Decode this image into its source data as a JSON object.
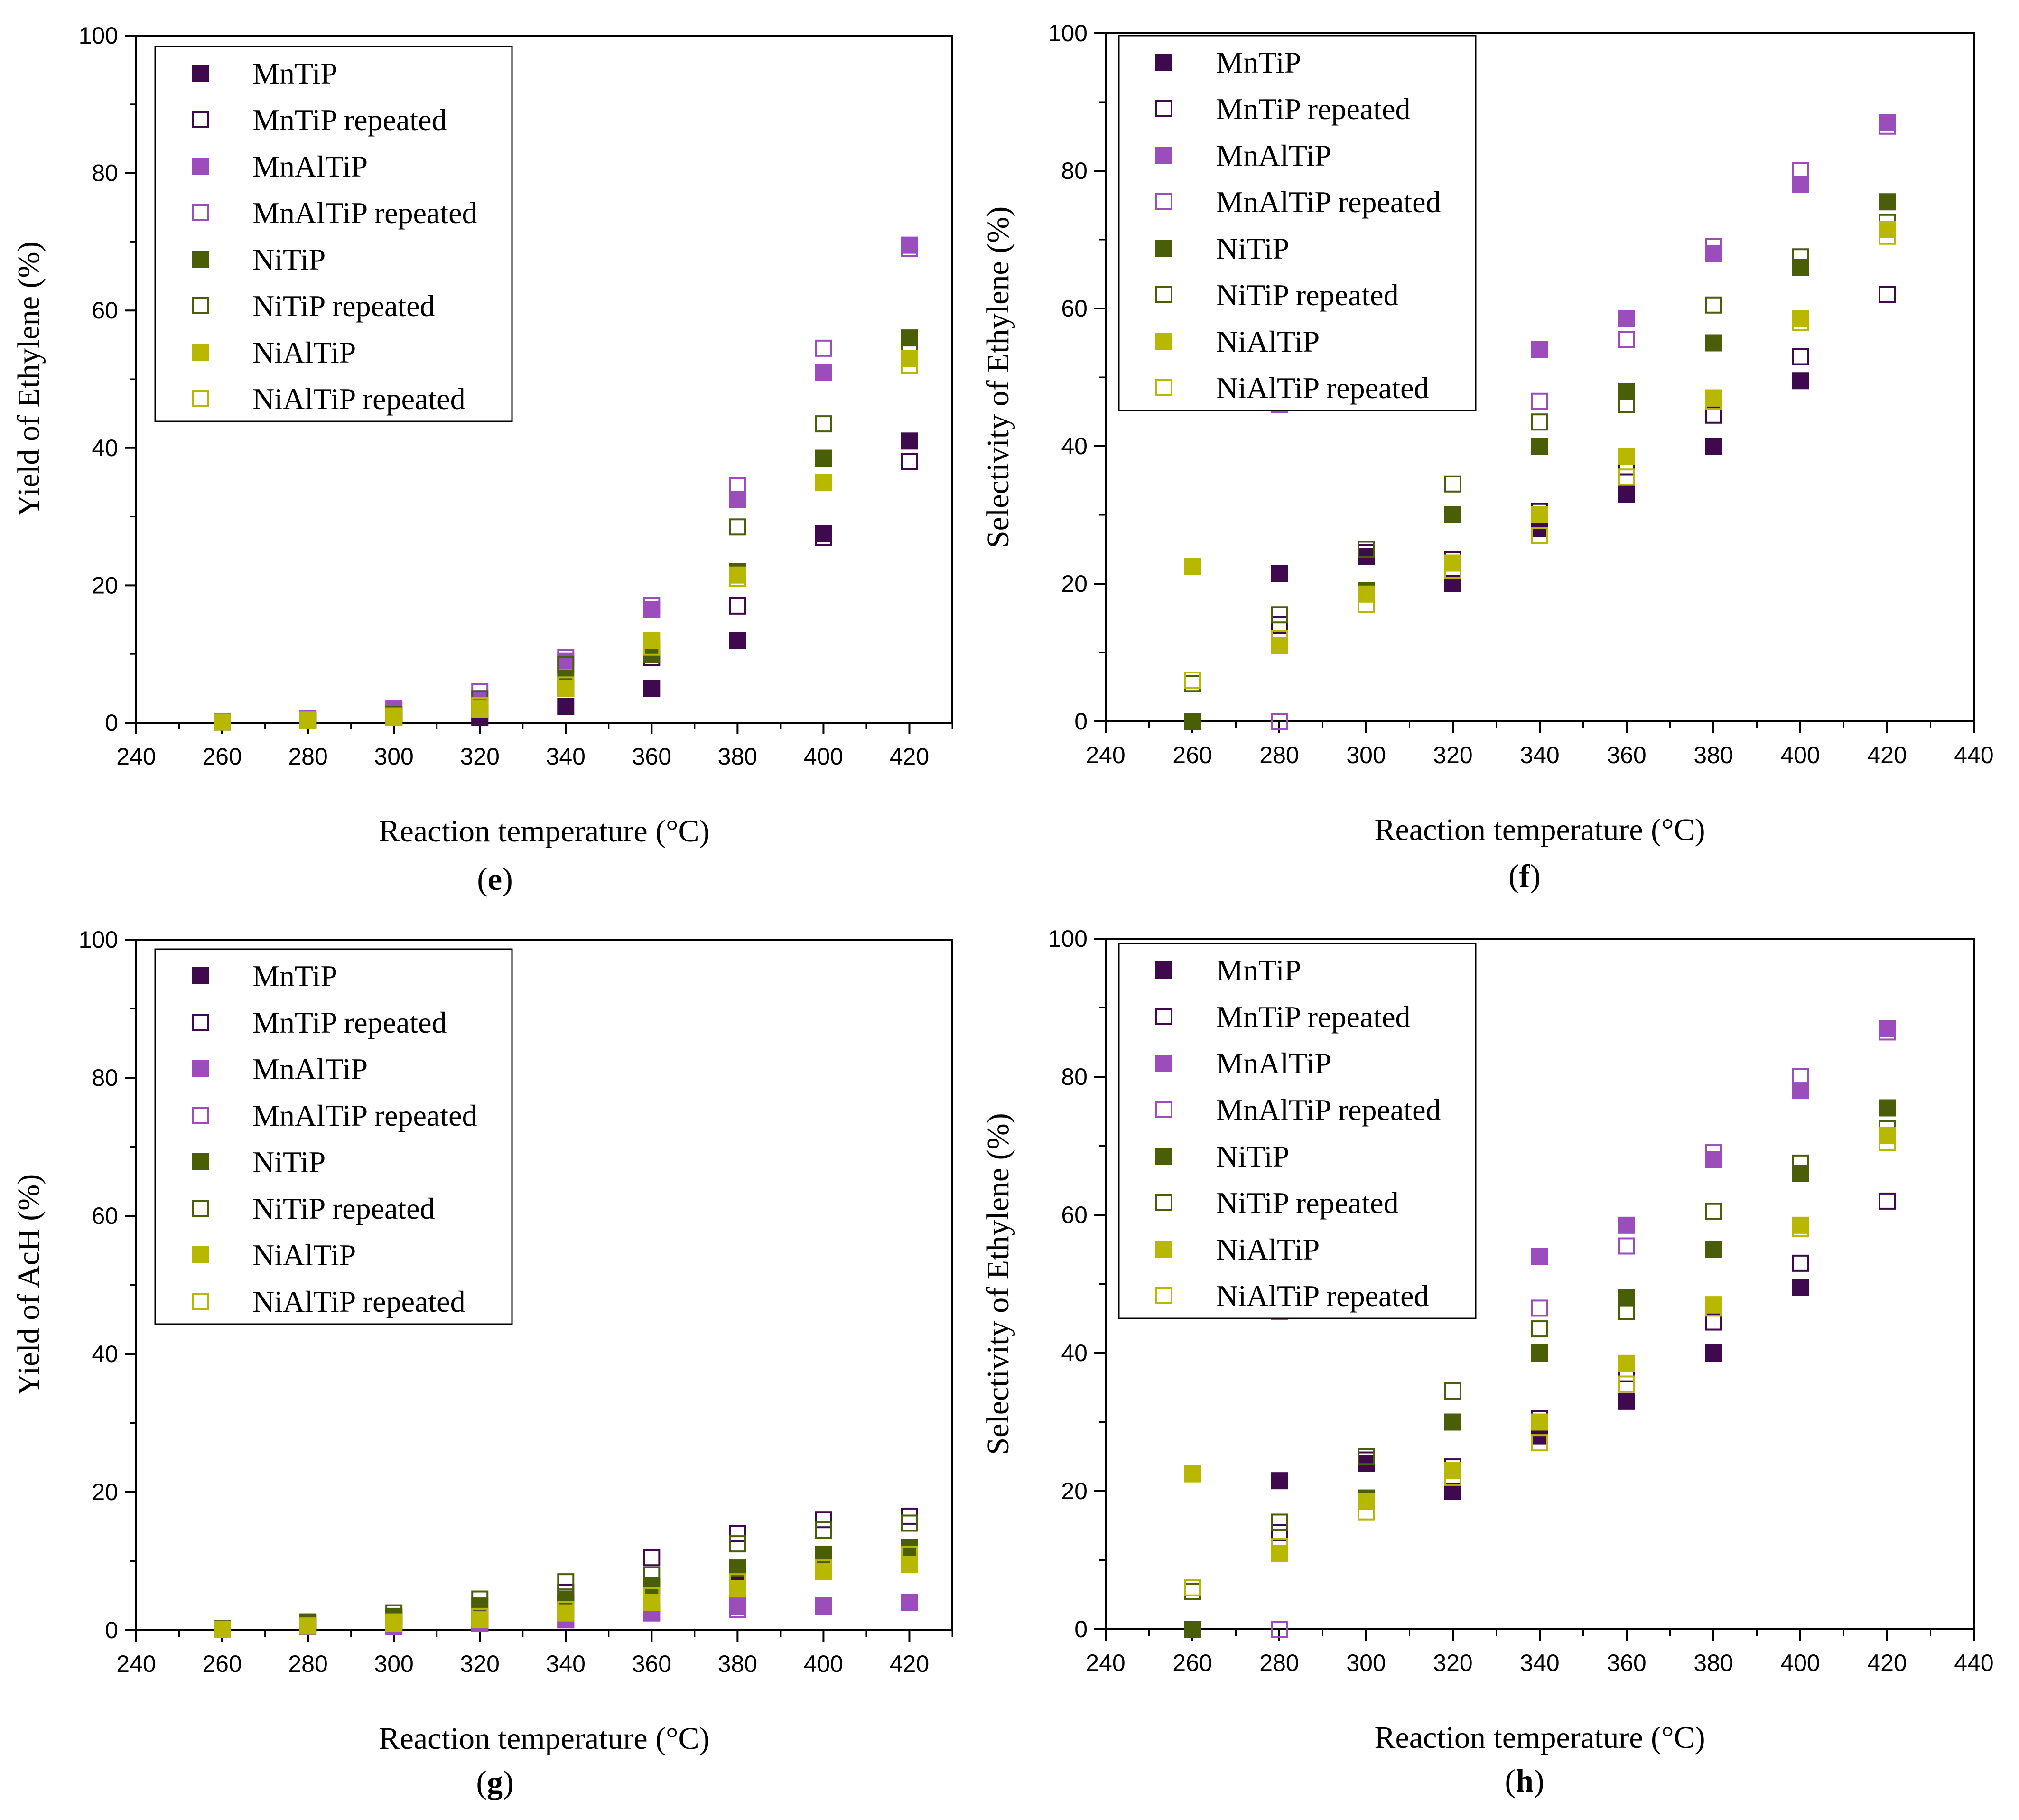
{
  "series_styles": [
    {
      "key": "MnTiP",
      "color": "#3f0a4d",
      "filled": true
    },
    {
      "key": "MnTiP_rep",
      "color": "#3f0a4d",
      "filled": false
    },
    {
      "key": "MnAlTiP",
      "color": "#9b4dbb",
      "filled": true
    },
    {
      "key": "MnAlTiP_rep",
      "color": "#9b4dbb",
      "filled": false
    },
    {
      "key": "NiTiP",
      "color": "#4a5e08",
      "filled": true
    },
    {
      "key": "NiTiP_rep",
      "color": "#4a5e08",
      "filled": false
    },
    {
      "key": "NiAlTiP",
      "color": "#b8b800",
      "filled": true
    },
    {
      "key": "NiAlTiP_rep",
      "color": "#b8b800",
      "filled": false
    }
  ],
  "chart_data": [
    {
      "type": "scatter",
      "panel": "e",
      "xlabel": "Reaction temperature (°C)",
      "ylabel": "Yield of Ethylene (%)",
      "xlim": [
        240,
        430
      ],
      "ylim": [
        0,
        100
      ],
      "xticks": [
        240,
        260,
        280,
        300,
        320,
        340,
        360,
        380,
        400,
        420
      ],
      "yticks": [
        0,
        20,
        40,
        60,
        80,
        100
      ],
      "legend_position": "top-left",
      "x": [
        260,
        280,
        300,
        320,
        340,
        360,
        380,
        400,
        420
      ],
      "series": [
        {
          "name": "MnTiP",
          "values": [
            0.1,
            0.3,
            0.8,
            0.8,
            2.4,
            5.0,
            12.0,
            27.5,
            41.0
          ]
        },
        {
          "name": "MnTiP repeated",
          "values": [
            0.1,
            0.4,
            1.2,
            1.5,
            5.0,
            9.5,
            17.0,
            27.0,
            38.0
          ]
        },
        {
          "name": "MnAlTiP",
          "values": [
            0.2,
            0.5,
            1.8,
            3.5,
            9.0,
            16.5,
            32.5,
            51.0,
            69.5
          ]
        },
        {
          "name": "MnAlTiP repeated",
          "values": [
            0.2,
            0.6,
            2.0,
            4.5,
            9.5,
            17.0,
            34.5,
            54.5,
            69.0
          ]
        },
        {
          "name": "NiTiP",
          "values": [
            0.1,
            0.3,
            1.0,
            2.0,
            6.5,
            10.0,
            22.0,
            38.5,
            56.0
          ]
        },
        {
          "name": "NiTiP repeated",
          "values": [
            0.1,
            0.4,
            1.2,
            3.5,
            8.5,
            10.5,
            28.5,
            43.5,
            54.5
          ]
        },
        {
          "name": "NiAlTiP",
          "values": [
            0.1,
            0.3,
            0.8,
            2.0,
            5.0,
            12.0,
            21.5,
            35.0,
            53.0
          ]
        },
        {
          "name": "NiAlTiP repeated",
          "values": [
            0.1,
            0.4,
            1.0,
            2.5,
            5.5,
            11.0,
            21.0,
            35.0,
            52.0
          ]
        }
      ]
    },
    {
      "type": "scatter",
      "panel": "f",
      "xlabel": "Reaction temperature (°C)",
      "ylabel": "Selectivity of Ethylene (%)",
      "xlim": [
        240,
        440
      ],
      "ylim": [
        0,
        100
      ],
      "xticks": [
        240,
        260,
        280,
        300,
        320,
        340,
        360,
        380,
        400,
        420,
        440
      ],
      "yticks": [
        0,
        20,
        40,
        60,
        80,
        100
      ],
      "legend_position": "top-left",
      "x": [
        260,
        280,
        300,
        320,
        340,
        360,
        380,
        400,
        420
      ],
      "series": [
        {
          "name": "MnTiP",
          "values": [
            null,
            21.5,
            24.0,
            20.0,
            28.0,
            33.0,
            40.0,
            49.5,
            null
          ]
        },
        {
          "name": "MnTiP repeated",
          "values": [
            null,
            14.0,
            24.5,
            23.5,
            30.5,
            37.0,
            44.5,
            53.0,
            62.0
          ]
        },
        {
          "name": "MnAlTiP",
          "values": [
            null,
            46.0,
            null,
            null,
            54.0,
            58.5,
            68.0,
            78.0,
            87.0
          ]
        },
        {
          "name": "MnAlTiP repeated",
          "values": [
            null,
            0.0,
            null,
            null,
            46.5,
            55.5,
            69.0,
            80.0,
            86.5
          ]
        },
        {
          "name": "NiTiP",
          "values": [
            0.0,
            null,
            19.0,
            30.0,
            40.0,
            48.0,
            55.0,
            66.0,
            75.5
          ]
        },
        {
          "name": "NiTiP repeated",
          "values": [
            5.5,
            15.5,
            25.0,
            34.5,
            43.5,
            46.0,
            60.5,
            67.5,
            72.5
          ]
        },
        {
          "name": "NiAlTiP",
          "values": [
            22.5,
            11.0,
            18.5,
            23.0,
            30.0,
            38.5,
            47.0,
            58.5,
            71.5
          ]
        },
        {
          "name": "NiAlTiP repeated",
          "values": [
            6.0,
            12.0,
            17.0,
            22.0,
            27.0,
            35.5,
            46.5,
            58.0,
            70.5
          ]
        }
      ]
    },
    {
      "type": "scatter",
      "panel": "g",
      "xlabel": "Reaction temperature (°C)",
      "ylabel": "Yield of  AcH (%)",
      "xlim": [
        240,
        430
      ],
      "ylim": [
        0,
        100
      ],
      "xticks": [
        240,
        260,
        280,
        300,
        320,
        340,
        360,
        380,
        400,
        420
      ],
      "yticks": [
        0,
        20,
        40,
        60,
        80,
        100
      ],
      "legend_position": "top-left",
      "x": [
        260,
        280,
        300,
        320,
        340,
        360,
        380,
        400,
        420
      ],
      "series": [
        {
          "name": "MnTiP",
          "values": [
            0.1,
            1.0,
            1.5,
            1.0,
            4.0,
            6.0,
            8.5,
            10.0,
            12.0
          ]
        },
        {
          "name": "MnTiP repeated",
          "values": [
            0.1,
            1.0,
            1.8,
            2.0,
            5.5,
            10.5,
            14.0,
            16.0,
            16.5
          ]
        },
        {
          "name": "MnAlTiP",
          "values": [
            0.1,
            0.5,
            0.5,
            1.0,
            1.5,
            2.5,
            3.5,
            3.5,
            4.0
          ]
        },
        {
          "name": "MnAlTiP repeated",
          "values": [
            0.1,
            0.5,
            0.6,
            1.2,
            1.5,
            2.5,
            3.0,
            3.5,
            4.0
          ]
        },
        {
          "name": "NiTiP",
          "values": [
            0.1,
            1.0,
            2.0,
            3.5,
            4.5,
            6.5,
            9.0,
            11.0,
            12.0
          ]
        },
        {
          "name": "NiTiP repeated",
          "values": [
            0.2,
            1.2,
            2.5,
            4.5,
            7.0,
            8.0,
            12.5,
            14.5,
            15.5
          ]
        },
        {
          "name": "NiAlTiP",
          "values": [
            0.1,
            0.6,
            1.0,
            1.5,
            2.5,
            4.0,
            6.0,
            8.5,
            9.5
          ]
        },
        {
          "name": "NiAlTiP repeated",
          "values": [
            0.1,
            0.6,
            1.2,
            2.0,
            3.0,
            5.0,
            7.0,
            9.0,
            11.0
          ]
        }
      ]
    },
    {
      "type": "scatter",
      "panel": "h",
      "xlabel": "Reaction temperature (°C)",
      "ylabel": "Selectivity of Ethylene (%)",
      "xlim": [
        240,
        440
      ],
      "ylim": [
        0,
        100
      ],
      "xticks": [
        240,
        260,
        280,
        300,
        320,
        340,
        360,
        380,
        400,
        420,
        440
      ],
      "yticks": [
        0,
        20,
        40,
        60,
        80,
        100
      ],
      "legend_position": "top-left",
      "x": [
        260,
        280,
        300,
        320,
        340,
        360,
        380,
        400,
        420
      ],
      "series": [
        {
          "name": "MnTiP",
          "values": [
            null,
            21.5,
            24.0,
            20.0,
            28.0,
            33.0,
            40.0,
            49.5,
            null
          ]
        },
        {
          "name": "MnTiP repeated",
          "values": [
            null,
            14.0,
            24.5,
            23.5,
            30.5,
            37.0,
            44.5,
            53.0,
            62.0
          ]
        },
        {
          "name": "MnAlTiP",
          "values": [
            null,
            46.0,
            null,
            null,
            54.0,
            58.5,
            68.0,
            78.0,
            87.0
          ]
        },
        {
          "name": "MnAlTiP repeated",
          "values": [
            null,
            0.0,
            null,
            null,
            46.5,
            55.5,
            69.0,
            80.0,
            86.5
          ]
        },
        {
          "name": "NiTiP",
          "values": [
            0.0,
            null,
            19.0,
            30.0,
            40.0,
            48.0,
            55.0,
            66.0,
            75.5
          ]
        },
        {
          "name": "NiTiP repeated",
          "values": [
            5.5,
            15.5,
            25.0,
            34.5,
            43.5,
            46.0,
            60.5,
            67.5,
            72.5
          ]
        },
        {
          "name": "NiAlTiP",
          "values": [
            22.5,
            11.0,
            18.5,
            23.0,
            30.0,
            38.5,
            47.0,
            58.5,
            71.5
          ]
        },
        {
          "name": "NiAlTiP repeated",
          "values": [
            6.0,
            12.0,
            17.0,
            22.0,
            27.0,
            35.5,
            46.5,
            58.0,
            70.5
          ]
        }
      ]
    }
  ]
}
